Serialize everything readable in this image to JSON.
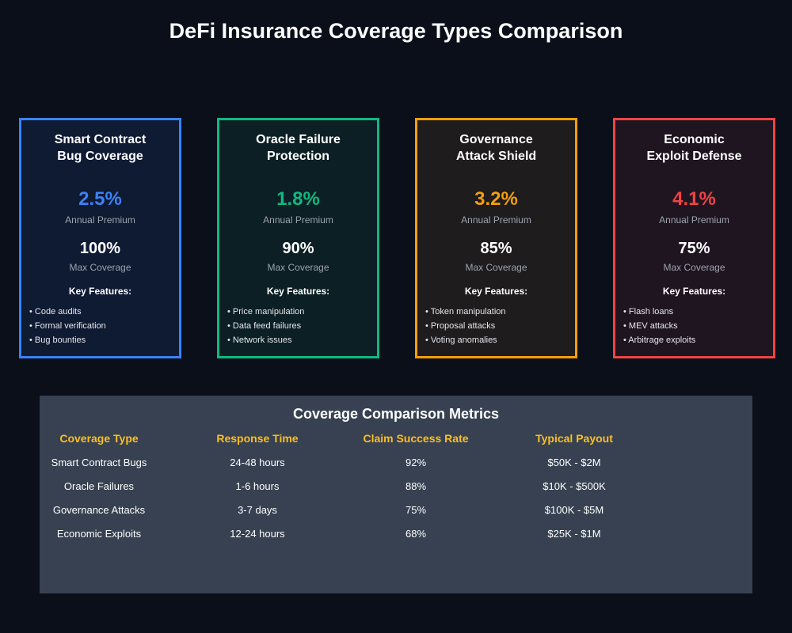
{
  "page": {
    "title": "DeFi Insurance Coverage Types Comparison"
  },
  "cards": [
    {
      "title_line1": "Smart Contract",
      "title_line2": "Bug Coverage",
      "premium": "2.5%",
      "premium_label": "Annual Premium",
      "coverage": "100%",
      "coverage_label": "Max Coverage",
      "features_heading": "Key Features:",
      "features": [
        "• Code audits",
        "• Formal verification",
        "• Bug bounties"
      ],
      "accent": "#3b82f6",
      "bg": "#0f1a33"
    },
    {
      "title_line1": "Oracle Failure",
      "title_line2": "Protection",
      "premium": "1.8%",
      "premium_label": "Annual Premium",
      "coverage": "90%",
      "coverage_label": "Max Coverage",
      "features_heading": "Key Features:",
      "features": [
        "• Price manipulation",
        "• Data feed failures",
        "• Network issues"
      ],
      "accent": "#10b981",
      "bg": "#0b1f24"
    },
    {
      "title_line1": "Governance",
      "title_line2": "Attack Shield",
      "premium": "3.2%",
      "premium_label": "Annual Premium",
      "coverage": "85%",
      "coverage_label": "Max Coverage",
      "features_heading": "Key Features:",
      "features": [
        "• Token manipulation",
        "• Proposal attacks",
        "• Voting anomalies"
      ],
      "accent": "#f59e0b",
      "bg": "#1e1c1d"
    },
    {
      "title_line1": "Economic",
      "title_line2": "Exploit Defense",
      "premium": "4.1%",
      "premium_label": "Annual Premium",
      "coverage": "75%",
      "coverage_label": "Max Coverage",
      "features_heading": "Key Features:",
      "features": [
        "• Flash loans",
        "• MEV attacks",
        "• Arbitrage exploits"
      ],
      "accent": "#ef4444",
      "bg": "#1f1520"
    }
  ],
  "metrics": {
    "title": "Coverage Comparison Metrics",
    "headers": [
      "Coverage Type",
      "Response Time",
      "Claim Success Rate",
      "Typical Payout"
    ],
    "rows": [
      [
        "Smart Contract Bugs",
        "24-48 hours",
        "92%",
        "$50K - $2M"
      ],
      [
        "Oracle Failures",
        "1-6 hours",
        "88%",
        "$10K - $500K"
      ],
      [
        "Governance Attacks",
        "3-7 days",
        "75%",
        "$100K - $5M"
      ],
      [
        "Economic Exploits",
        "12-24 hours",
        "68%",
        "$25K - $1M"
      ]
    ]
  },
  "chart_data": {
    "type": "table",
    "title": "Coverage Comparison Metrics",
    "columns": [
      "Coverage Type",
      "Response Time",
      "Claim Success Rate",
      "Typical Payout"
    ],
    "rows": [
      [
        "Smart Contract Bugs",
        "24-48 hours",
        "92%",
        "$50K - $2M"
      ],
      [
        "Oracle Failures",
        "1-6 hours",
        "88%",
        "$10K - $500K"
      ],
      [
        "Governance Attacks",
        "3-7 days",
        "75%",
        "$100K - $5M"
      ],
      [
        "Economic Exploits",
        "12-24 hours",
        "68%",
        "$25K - $1M"
      ]
    ]
  }
}
